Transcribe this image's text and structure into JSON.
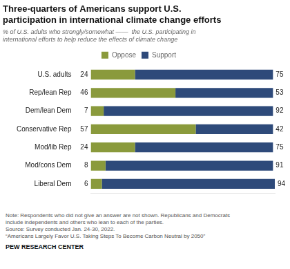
{
  "chart_data": {
    "type": "bar",
    "title": "Three-quarters of Americans support U.S.\nparticipation in international climate change efforts",
    "subtitle": "% of U.S. adults who strongly/somewhat ——  the U.S. participating in\ninternational efforts to help reduce the effects of climate change",
    "categories": [
      "U.S. adults",
      "Rep/lean Rep",
      "Dem/lean Dem",
      "Conservative Rep",
      "Mod/lib Rep",
      "Mod/cons Dem",
      "Liberal Dem"
    ],
    "series": [
      {
        "name": "Oppose",
        "color": "#8a9a3c",
        "values": [
          24,
          46,
          7,
          57,
          24,
          8,
          6
        ]
      },
      {
        "name": "Support",
        "color": "#2e4a7a",
        "values": [
          75,
          53,
          92,
          42,
          75,
          91,
          94
        ]
      }
    ],
    "orientation": "horizontal",
    "stacked": true,
    "data_labels": true,
    "xlim": [
      0,
      100
    ],
    "tick_labels": "y",
    "grid": false,
    "legend": "top",
    "annotations": [
      "Note: Respondents who did not give an answer are not shown. Republicans and Democrats\ninclude independents and others who lean to each of the parties.\nSource: Survey conducted Jan. 24-30, 2022.\n“Americans Largely Favor U.S. Taking Steps To Become Carbon Neutral by 2050”",
      "PEW RESEARCH CENTER"
    ]
  }
}
